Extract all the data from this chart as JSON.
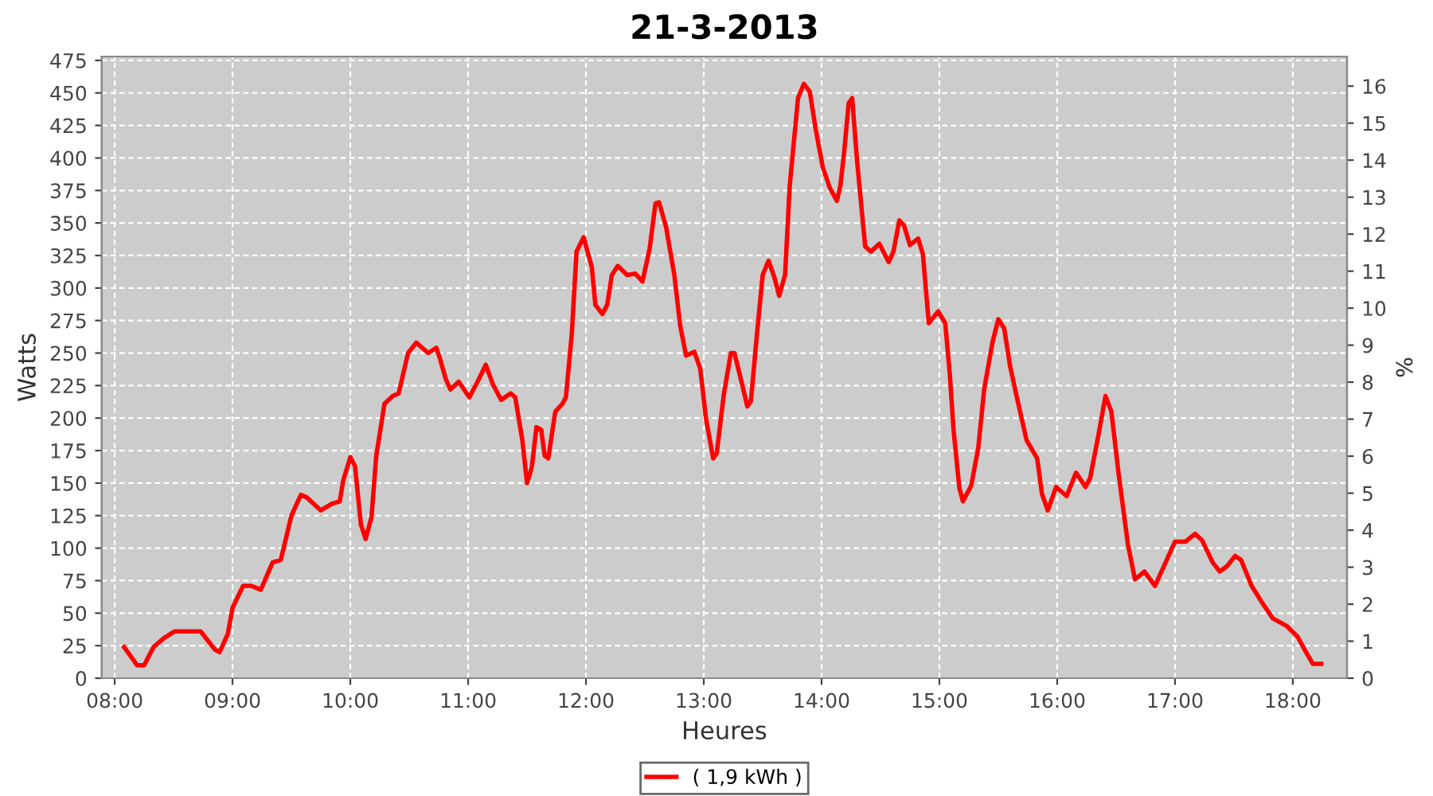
{
  "chart_data": {
    "type": "line",
    "title": "21-3-2013",
    "xlabel": "Heures",
    "ylabel": "Watts",
    "y2label": "%",
    "xlim": [
      7.89,
      18.46
    ],
    "ylim": [
      0,
      478
    ],
    "y2lim": [
      0,
      16.8
    ],
    "xticks": [
      {
        "value": 8,
        "label": "08:00"
      },
      {
        "value": 9,
        "label": "09:00"
      },
      {
        "value": 10,
        "label": "10:00"
      },
      {
        "value": 11,
        "label": "11:00"
      },
      {
        "value": 12,
        "label": "12:00"
      },
      {
        "value": 13,
        "label": "13:00"
      },
      {
        "value": 14,
        "label": "14:00"
      },
      {
        "value": 15,
        "label": "15:00"
      },
      {
        "value": 16,
        "label": "16:00"
      },
      {
        "value": 17,
        "label": "17:00"
      },
      {
        "value": 18,
        "label": "18:00"
      }
    ],
    "yticks": [
      0,
      25,
      50,
      75,
      100,
      125,
      150,
      175,
      200,
      225,
      250,
      275,
      300,
      325,
      350,
      375,
      400,
      425,
      450,
      475
    ],
    "y2ticks": [
      0,
      1,
      2,
      3,
      4,
      5,
      6,
      7,
      8,
      9,
      10,
      11,
      12,
      13,
      14,
      15,
      16
    ],
    "grid": true,
    "legend": "bottom",
    "line_style": "solid",
    "marker": "none",
    "series": [
      {
        "name": "( 1,9 kWh )",
        "color": "#ff0000",
        "x": [
          8.08,
          8.19,
          8.25,
          8.33,
          8.42,
          8.51,
          8.73,
          8.85,
          8.89,
          8.96,
          9.0,
          9.09,
          9.16,
          9.24,
          9.34,
          9.41,
          9.5,
          9.58,
          9.63,
          9.75,
          9.84,
          9.91,
          9.94,
          10.0,
          10.04,
          10.09,
          10.13,
          10.18,
          10.22,
          10.29,
          10.36,
          10.41,
          10.49,
          10.56,
          10.66,
          10.73,
          10.76,
          10.81,
          10.85,
          10.92,
          11.01,
          11.08,
          11.15,
          11.21,
          11.28,
          11.36,
          11.4,
          11.46,
          11.5,
          11.54,
          11.58,
          11.62,
          11.65,
          11.68,
          11.74,
          11.8,
          11.83,
          11.88,
          11.92,
          11.98,
          12.05,
          12.08,
          12.14,
          12.18,
          12.22,
          12.27,
          12.35,
          12.42,
          12.48,
          12.54,
          12.59,
          12.62,
          12.68,
          12.75,
          12.8,
          12.85,
          12.92,
          12.97,
          13.02,
          13.08,
          13.11,
          13.17,
          13.23,
          13.26,
          13.32,
          13.37,
          13.4,
          13.45,
          13.5,
          13.55,
          13.6,
          13.64,
          13.69,
          13.73,
          13.8,
          13.85,
          13.9,
          13.95,
          14.01,
          14.07,
          14.13,
          14.16,
          14.19,
          14.23,
          14.26,
          14.3,
          14.37,
          14.42,
          14.49,
          14.57,
          14.61,
          14.66,
          14.7,
          14.75,
          14.82,
          14.86,
          14.91,
          14.99,
          15.05,
          15.09,
          15.12,
          15.17,
          15.2,
          15.27,
          15.33,
          15.38,
          15.45,
          15.5,
          15.55,
          15.6,
          15.66,
          15.74,
          15.83,
          15.87,
          15.92,
          15.99,
          16.08,
          16.16,
          16.24,
          16.28,
          16.35,
          16.41,
          16.46,
          16.52,
          16.6,
          16.66,
          16.74,
          16.83,
          16.91,
          17.0,
          17.09,
          17.17,
          17.23,
          17.32,
          17.38,
          17.44,
          17.51,
          17.56,
          17.65,
          17.74,
          17.83,
          17.95,
          18.04,
          18.1,
          18.17,
          18.24
        ],
        "values": [
          24,
          10,
          10,
          24,
          31,
          36,
          36,
          22,
          20,
          34,
          54,
          71,
          71,
          68,
          89,
          91,
          125,
          141,
          139,
          129,
          134,
          136,
          152,
          170,
          163,
          118,
          107,
          124,
          171,
          211,
          217,
          219,
          250,
          258,
          250,
          254,
          246,
          230,
          222,
          228,
          216,
          228,
          241,
          226,
          214,
          219,
          216,
          183,
          150,
          162,
          193,
          191,
          171,
          169,
          205,
          211,
          216,
          265,
          328,
          339,
          316,
          287,
          280,
          287,
          310,
          317,
          310,
          311,
          305,
          330,
          365,
          366,
          347,
          310,
          271,
          248,
          251,
          238,
          199,
          169,
          173,
          218,
          250,
          250,
          228,
          209,
          213,
          263,
          310,
          321,
          308,
          294,
          310,
          379,
          446,
          457,
          451,
          422,
          393,
          377,
          367,
          379,
          403,
          442,
          446,
          399,
          332,
          328,
          334,
          320,
          328,
          352,
          348,
          333,
          338,
          326,
          273,
          282,
          273,
          232,
          191,
          146,
          136,
          148,
          177,
          222,
          258,
          276,
          269,
          240,
          215,
          183,
          169,
          142,
          129,
          147,
          140,
          158,
          147,
          154,
          187,
          217,
          205,
          158,
          103,
          76,
          82,
          71,
          87,
          105,
          105,
          111,
          106,
          89,
          82,
          86,
          94,
          91,
          71,
          58,
          46,
          40,
          32,
          22,
          11,
          11
        ]
      }
    ]
  }
}
